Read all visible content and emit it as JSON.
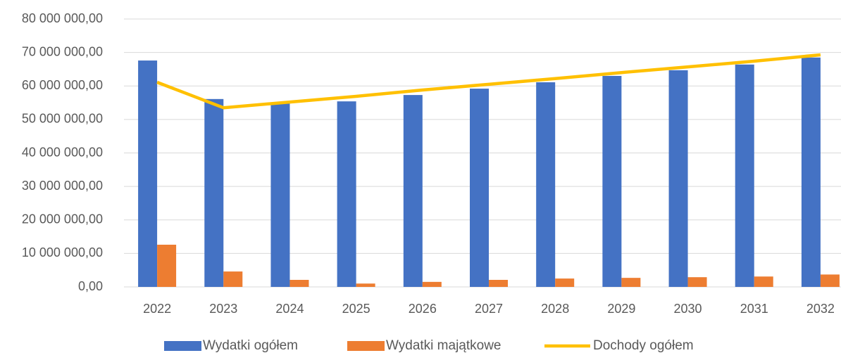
{
  "chart_data": {
    "type": "bar",
    "categories": [
      "2022",
      "2023",
      "2024",
      "2025",
      "2026",
      "2027",
      "2028",
      "2029",
      "2030",
      "2031",
      "2032"
    ],
    "series": [
      {
        "name": "Wydatki ogółem",
        "type": "bar",
        "color": "#4472c4",
        "values": [
          67600000,
          56100000,
          55000000,
          55400000,
          57300000,
          59200000,
          61100000,
          63000000,
          64700000,
          66400000,
          68500000
        ]
      },
      {
        "name": "Wydatki majątkowe",
        "type": "bar",
        "color": "#ed7d31",
        "values": [
          12600000,
          4600000,
          2100000,
          1000000,
          1500000,
          2100000,
          2500000,
          2700000,
          2900000,
          3100000,
          3700000
        ]
      },
      {
        "name": "Dochody ogółem",
        "type": "line",
        "color": "#ffc000",
        "values": [
          61100000,
          53500000,
          55200000,
          56900000,
          58800000,
          60500000,
          62200000,
          64000000,
          65700000,
          67400000,
          69300000
        ]
      }
    ],
    "ylim": [
      0,
      80000000
    ],
    "yticks": [
      {
        "value": 0,
        "label": "0,00"
      },
      {
        "value": 10000000,
        "label": "10 000 000,00"
      },
      {
        "value": 20000000,
        "label": "20 000 000,00"
      },
      {
        "value": 30000000,
        "label": "30 000 000,00"
      },
      {
        "value": 40000000,
        "label": "40 000 000,00"
      },
      {
        "value": 50000000,
        "label": "50 000 000,00"
      },
      {
        "value": 60000000,
        "label": "60 000 000,00"
      },
      {
        "value": 70000000,
        "label": "70 000 000,00"
      },
      {
        "value": 80000000,
        "label": "80 000 000,00"
      }
    ],
    "grid": true,
    "legend": "bottom"
  }
}
